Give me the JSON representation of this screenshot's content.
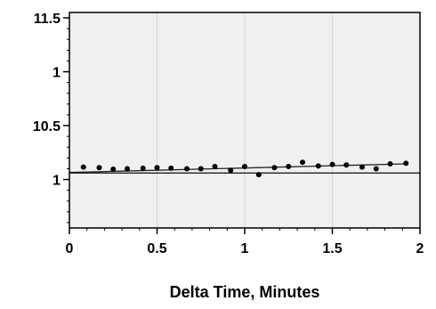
{
  "chart_data": {
    "type": "scatter",
    "title": "",
    "xlabel": "Delta Time, Minutes",
    "ylabel": "",
    "xlim": [
      0,
      2
    ],
    "x_ticks": [
      {
        "value": 0,
        "label": "0"
      },
      {
        "value": 0.5,
        "label": "0.5"
      },
      {
        "value": 1,
        "label": "1"
      },
      {
        "value": 1.5,
        "label": "1.5"
      },
      {
        "value": 2,
        "label": "2"
      }
    ],
    "y_ticks": [
      {
        "value": 4,
        "label": "11.5"
      },
      {
        "value": 3,
        "label": "1"
      },
      {
        "value": 2,
        "label": "10.5"
      },
      {
        "value": 1,
        "label": "1"
      }
    ],
    "ylim": [
      0.1,
      4.1
    ],
    "grid": {
      "x": true,
      "y": false
    },
    "colors": {
      "plot_background": "#f0f0f0",
      "grid": "#d4d4d4",
      "points": "#000000",
      "lines": "#222222",
      "axes": "#000000"
    },
    "series": [
      {
        "type": "scatter",
        "points": [
          {
            "x": 0.08,
            "y": 1.23
          },
          {
            "x": 0.17,
            "y": 1.22
          },
          {
            "x": 0.25,
            "y": 1.19
          },
          {
            "x": 0.33,
            "y": 1.2
          },
          {
            "x": 0.42,
            "y": 1.21
          },
          {
            "x": 0.5,
            "y": 1.22
          },
          {
            "x": 0.58,
            "y": 1.21
          },
          {
            "x": 0.67,
            "y": 1.2
          },
          {
            "x": 0.75,
            "y": 1.2
          },
          {
            "x": 0.83,
            "y": 1.24
          },
          {
            "x": 0.92,
            "y": 1.17
          },
          {
            "x": 1.0,
            "y": 1.24
          },
          {
            "x": 1.08,
            "y": 1.09
          },
          {
            "x": 1.17,
            "y": 1.22
          },
          {
            "x": 1.25,
            "y": 1.24
          },
          {
            "x": 1.33,
            "y": 1.32
          },
          {
            "x": 1.42,
            "y": 1.25
          },
          {
            "x": 1.5,
            "y": 1.28
          },
          {
            "x": 1.58,
            "y": 1.27
          },
          {
            "x": 1.67,
            "y": 1.23
          },
          {
            "x": 1.75,
            "y": 1.2
          },
          {
            "x": 1.83,
            "y": 1.29
          },
          {
            "x": 1.92,
            "y": 1.3
          }
        ]
      },
      {
        "type": "line",
        "points": [
          {
            "x": 0,
            "y": 1.12
          },
          {
            "x": 2,
            "y": 1.12
          }
        ]
      },
      {
        "type": "line",
        "points": [
          {
            "x": 0,
            "y": 1.13
          },
          {
            "x": 1.92,
            "y": 1.29
          }
        ]
      }
    ]
  }
}
